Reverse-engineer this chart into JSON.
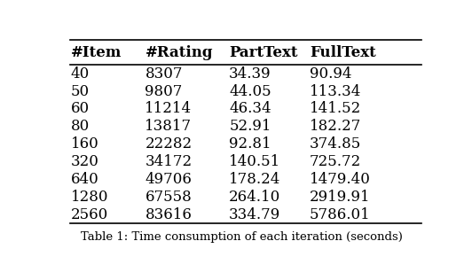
{
  "headers": [
    "#Item",
    "#Rating",
    "PartText",
    "FullText"
  ],
  "rows": [
    [
      "40",
      "8307",
      "34.39",
      "90.94"
    ],
    [
      "50",
      "9807",
      "44.05",
      "113.34"
    ],
    [
      "60",
      "11214",
      "46.34",
      "141.52"
    ],
    [
      "80",
      "13817",
      "52.91",
      "182.27"
    ],
    [
      "160",
      "22282",
      "92.81",
      "374.85"
    ],
    [
      "320",
      "34172",
      "140.51",
      "725.72"
    ],
    [
      "640",
      "49706",
      "178.24",
      "1479.40"
    ],
    [
      "1280",
      "67558",
      "264.10",
      "2919.91"
    ],
    [
      "2560",
      "83616",
      "334.79",
      "5786.01"
    ]
  ],
  "caption": "Table 1: Time consumption of each iteration (seconds)",
  "background_color": "#ffffff",
  "text_color": "#000000",
  "header_fontsize": 12,
  "cell_fontsize": 12,
  "caption_fontsize": 9.5,
  "fig_width": 5.32,
  "fig_height": 3.16
}
